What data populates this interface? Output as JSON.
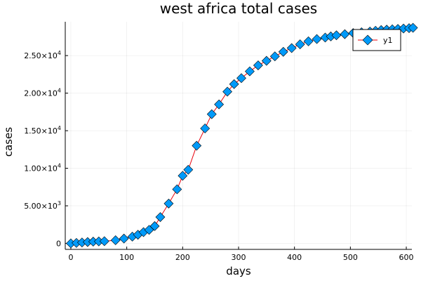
{
  "chart_data": {
    "type": "line",
    "title": "west africa total cases",
    "xlabel": "days",
    "ylabel": "cases",
    "xlim": [
      -10,
      610
    ],
    "ylim": [
      -800,
      29500
    ],
    "x_ticks": [
      0,
      100,
      200,
      300,
      400,
      500,
      600
    ],
    "x_tick_labels": [
      "0",
      "100",
      "200",
      "300",
      "400",
      "500",
      "600"
    ],
    "y_ticks": [
      0,
      5000,
      10000,
      15000,
      20000,
      25000
    ],
    "y_tick_labels": [
      {
        "mantissa": "0",
        "exponent": ""
      },
      {
        "mantissa": "5.00×10",
        "exponent": "3"
      },
      {
        "mantissa": "1.00×10",
        "exponent": "4"
      },
      {
        "mantissa": "1.50×10",
        "exponent": "4"
      },
      {
        "mantissa": "2.00×10",
        "exponent": "4"
      },
      {
        "mantissa": "2.50×10",
        "exponent": "4"
      }
    ],
    "grid": true,
    "legend_position": "top-right",
    "series": [
      {
        "name": "y1",
        "line_color": "#e8000b",
        "marker": "diamond",
        "marker_color": "#009af9",
        "x": [
          0,
          10,
          20,
          30,
          40,
          50,
          60,
          80,
          95,
          110,
          120,
          130,
          140,
          150,
          160,
          175,
          190,
          200,
          210,
          225,
          240,
          252,
          265,
          280,
          292,
          305,
          320,
          335,
          350,
          365,
          380,
          395,
          410,
          425,
          440,
          455,
          465,
          475,
          490,
          505,
          520,
          535,
          545,
          555,
          565,
          575,
          585,
          595,
          605,
          612
        ],
        "y": [
          0,
          60,
          120,
          180,
          230,
          260,
          290,
          420,
          640,
          900,
          1150,
          1500,
          1800,
          2300,
          3500,
          5300,
          7200,
          9000,
          9800,
          13000,
          15300,
          17200,
          18500,
          20200,
          21200,
          22000,
          22900,
          23700,
          24300,
          24900,
          25500,
          26000,
          26500,
          26900,
          27200,
          27400,
          27550,
          27700,
          27850,
          28000,
          28100,
          28200,
          28300,
          28400,
          28450,
          28500,
          28550,
          28600,
          28650,
          28700
        ]
      }
    ]
  }
}
